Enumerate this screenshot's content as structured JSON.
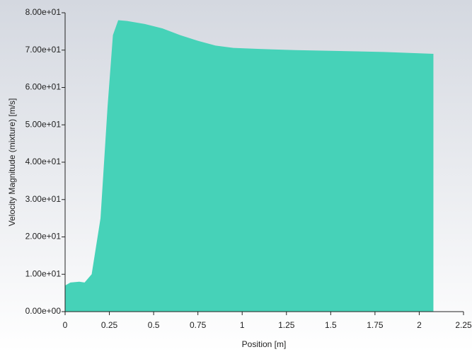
{
  "chart_data": {
    "type": "area",
    "x_label": "Position [m]",
    "y_label": "Velocity Magnitude (mixture) [m/s]",
    "x": [
      0,
      0.03,
      0.08,
      0.11,
      0.15,
      0.2,
      0.24,
      0.27,
      0.3,
      0.35,
      0.45,
      0.55,
      0.65,
      0.75,
      0.85,
      0.95,
      1.1,
      1.3,
      1.5,
      1.8,
      2.08
    ],
    "values": [
      7.0,
      7.8,
      8.0,
      7.8,
      10,
      25,
      55,
      74,
      78,
      77.8,
      77,
      75.8,
      74,
      72.5,
      71.2,
      70.6,
      70.3,
      70,
      69.8,
      69.5,
      69
    ],
    "color": "#46d2b8",
    "xlim": [
      0,
      2.25
    ],
    "ylim": [
      0,
      80
    ],
    "xticks": [
      0,
      0.25,
      0.5,
      0.75,
      1,
      1.25,
      1.5,
      1.75,
      2,
      2.25
    ],
    "yticks": [
      {
        "value": 0,
        "label": "0.00e+00"
      },
      {
        "value": 10,
        "label": "1.00e+01"
      },
      {
        "value": 20,
        "label": "2.00e+01"
      },
      {
        "value": 30,
        "label": "3.00e+01"
      },
      {
        "value": 40,
        "label": "4.00e+01"
      },
      {
        "value": 50,
        "label": "5.00e+01"
      },
      {
        "value": 60,
        "label": "6.00e+01"
      },
      {
        "value": 70,
        "label": "7.00e+01"
      },
      {
        "value": 80,
        "label": "8.00e+01"
      }
    ]
  }
}
